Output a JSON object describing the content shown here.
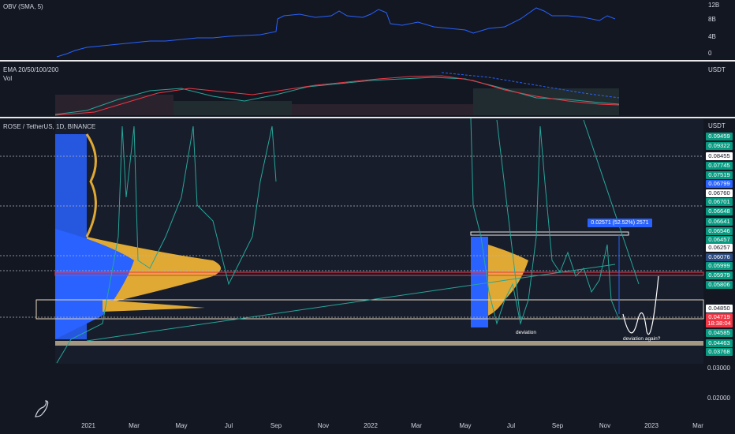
{
  "obv_pane": {
    "legend": "OBV (SMA, 5)",
    "scale_labels": [
      "12B",
      "8B",
      "4B",
      "0"
    ]
  },
  "ema_pane": {
    "legend_line1": "EMA 20/50/100/200",
    "legend_line2": "Vol",
    "currency": "USDT"
  },
  "main_pane": {
    "symbol": "ROSE / TetherUS, 1D, BINANCE",
    "currency": "USDT",
    "annotations": {
      "measure": "0.02571 (52.52%) 2571",
      "deviation": "deviation",
      "deviation_again": "deviation again?"
    },
    "price_tags": [
      {
        "text": "0.09459",
        "color": "#089981"
      },
      {
        "text": "0.09322",
        "color": "#089981"
      },
      {
        "text": "0.08455",
        "color": "#ffffff"
      },
      {
        "text": "0.07745",
        "color": "#089981"
      },
      {
        "text": "0.07519",
        "color": "#089981"
      },
      {
        "text": "0.06799",
        "color": "#2962ff"
      },
      {
        "text": "0.06760",
        "color": "#ffffff"
      },
      {
        "text": "0.06701",
        "color": "#089981"
      },
      {
        "text": "0.06648",
        "color": "#089981"
      },
      {
        "text": "0.06641",
        "color": "#089981"
      },
      {
        "text": "0.06546",
        "color": "#089981"
      },
      {
        "text": "0.06457",
        "color": "#089981"
      },
      {
        "text": "0.06257",
        "color": "#ffffff"
      },
      {
        "text": "0.06076",
        "color": "#2a4a7f"
      },
      {
        "text": "0.05999",
        "color": "#089981"
      },
      {
        "text": "0.05979",
        "color": "#089981"
      },
      {
        "text": "0.05806",
        "color": "#089981"
      },
      {
        "text": "0.04850",
        "color": "#ffffff"
      },
      {
        "text": "0.04719",
        "color": "#f23645"
      },
      {
        "text": "18:38:04",
        "color": "#f23645"
      },
      {
        "text": "0.04585",
        "color": "#089981"
      },
      {
        "text": "0.04463",
        "color": "#089981"
      },
      {
        "text": "0.03768",
        "color": "#089981"
      }
    ],
    "scale_labels": [
      "0.03000",
      "0.02000"
    ]
  },
  "x_axis": [
    "2021",
    "Mar",
    "May",
    "Jul",
    "Sep",
    "Nov",
    "2022",
    "Mar",
    "May",
    "Jul",
    "Sep",
    "Nov",
    "2023",
    "Mar"
  ],
  "chart_data": {
    "type": "line",
    "title": "ROSE / TetherUS, 1D, BINANCE",
    "x_ticks": [
      "2021",
      "Mar",
      "May",
      "Jul",
      "Sep",
      "Nov",
      "2022",
      "Mar",
      "May",
      "Jul",
      "Sep",
      "Nov",
      "2023",
      "Mar"
    ],
    "y_unit": "USDT",
    "series": [
      {
        "name": "",
        "x": [
          "2021",
          "Mar",
          "May",
          "Jul",
          "Sep",
          "Nov",
          "2022",
          "Mar",
          "May",
          "Jul",
          "Sep",
          "Nov"
        ],
        "values": [
          0.037,
          0.09,
          0.09,
          0.048,
          0.093,
          0.09,
          0.09,
          0.09,
          0.06,
          0.062,
          0.062,
          0.047
        ]
      }
    ],
    "key_levels": [
      0.0485,
      0.04719,
      0.04463,
      0.03768,
      0.06257,
      0.06076
    ],
    "measure": {
      "change": 0.02571,
      "percent": 52.52
    }
  }
}
